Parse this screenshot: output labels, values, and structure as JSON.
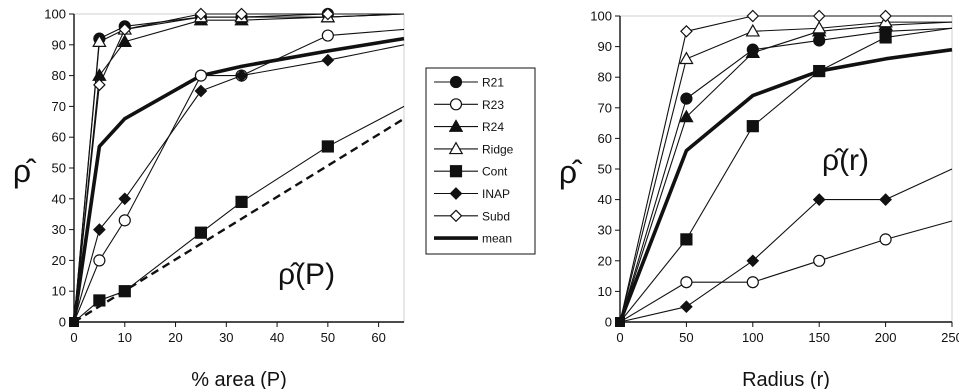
{
  "chart_data": [
    {
      "type": "line",
      "xlabel": "% area (P)",
      "ylabel": "ρ̂",
      "annotation": "ρ̂(P)",
      "xlim": [
        0,
        65
      ],
      "ylim": [
        0,
        100
      ],
      "xticks": [
        0,
        10,
        20,
        30,
        40,
        50,
        60
      ],
      "yticks": [
        0,
        10,
        20,
        30,
        40,
        50,
        60,
        70,
        80,
        90,
        100
      ],
      "grid": false,
      "series": [
        {
          "name": "R21",
          "marker": "circle-filled",
          "x": [
            0,
            5,
            10,
            25,
            33,
            50,
            65
          ],
          "y": [
            0,
            92,
            96,
            99,
            99,
            100,
            100
          ]
        },
        {
          "name": "R23",
          "marker": "circle-open",
          "x": [
            0,
            5,
            10,
            25,
            33,
            50,
            65
          ],
          "y": [
            0,
            20,
            33,
            80,
            80,
            93,
            95
          ]
        },
        {
          "name": "R24",
          "marker": "triangle-filled",
          "x": [
            0,
            5,
            10,
            25,
            33,
            50,
            65
          ],
          "y": [
            0,
            80,
            91,
            98,
            98,
            99,
            100
          ]
        },
        {
          "name": "Ridge",
          "marker": "triangle-open",
          "x": [
            0,
            5,
            10,
            25,
            33,
            50,
            65
          ],
          "y": [
            0,
            91,
            95,
            99,
            99,
            99,
            100
          ]
        },
        {
          "name": "Cont",
          "marker": "square-filled",
          "x": [
            0,
            5,
            10,
            25,
            33,
            50,
            65
          ],
          "y": [
            0,
            7,
            10,
            29,
            39,
            57,
            70
          ]
        },
        {
          "name": "INAP",
          "marker": "diamond-filled",
          "x": [
            0,
            5,
            10,
            25,
            33,
            50,
            65
          ],
          "y": [
            0,
            30,
            40,
            75,
            80,
            85,
            90
          ]
        },
        {
          "name": "Subd",
          "marker": "diamond-open",
          "x": [
            0,
            5,
            10,
            25,
            33,
            50,
            65
          ],
          "y": [
            0,
            77,
            95,
            100,
            100,
            100,
            100
          ]
        },
        {
          "name": "mean",
          "marker": "none",
          "bold": true,
          "x": [
            0,
            5,
            10,
            25,
            33,
            50,
            65
          ],
          "y": [
            0,
            57,
            66,
            80,
            83,
            88,
            92
          ]
        }
      ],
      "reference_line": {
        "style": "dashed",
        "x": [
          0,
          65
        ],
        "y": [
          0,
          66
        ]
      }
    },
    {
      "type": "line",
      "xlabel": "Radius (r)",
      "ylabel": "ρ̂",
      "annotation": "ρ̂(r)",
      "xlim": [
        0,
        250
      ],
      "ylim": [
        0,
        100
      ],
      "xticks": [
        0,
        50,
        100,
        150,
        200,
        250
      ],
      "yticks": [
        0,
        10,
        20,
        30,
        40,
        50,
        60,
        70,
        80,
        90,
        100
      ],
      "grid": false,
      "series": [
        {
          "name": "R21",
          "marker": "circle-filled",
          "x": [
            0,
            50,
            100,
            150,
            200,
            250
          ],
          "y": [
            0,
            73,
            89,
            92,
            95,
            96
          ]
        },
        {
          "name": "R23",
          "marker": "circle-open",
          "x": [
            0,
            50,
            100,
            150,
            200,
            250
          ],
          "y": [
            0,
            13,
            13,
            20,
            27,
            33
          ]
        },
        {
          "name": "R24",
          "marker": "triangle-filled",
          "x": [
            0,
            50,
            100,
            150,
            200,
            250
          ],
          "y": [
            0,
            67,
            88,
            95,
            97,
            98
          ]
        },
        {
          "name": "Ridge",
          "marker": "triangle-open",
          "x": [
            0,
            50,
            100,
            150,
            200,
            250
          ],
          "y": [
            0,
            86,
            95,
            96,
            98,
            98
          ]
        },
        {
          "name": "Cont",
          "marker": "square-filled",
          "x": [
            0,
            50,
            100,
            150,
            200,
            250
          ],
          "y": [
            0,
            27,
            64,
            82,
            93,
            96
          ]
        },
        {
          "name": "INAP",
          "marker": "diamond-filled",
          "x": [
            0,
            50,
            100,
            150,
            200,
            250
          ],
          "y": [
            0,
            5,
            20,
            40,
            40,
            50
          ]
        },
        {
          "name": "Subd",
          "marker": "diamond-open",
          "x": [
            0,
            50,
            100,
            150,
            200,
            250
          ],
          "y": [
            0,
            95,
            100,
            100,
            100,
            100
          ]
        },
        {
          "name": "mean",
          "marker": "none",
          "bold": true,
          "x": [
            0,
            50,
            100,
            150,
            200,
            250
          ],
          "y": [
            0,
            56,
            74,
            82,
            86,
            89
          ]
        }
      ]
    }
  ],
  "legend": {
    "placement": "center",
    "entries": [
      "R21",
      "R23",
      "R24",
      "Ridge",
      "Cont",
      "INAP",
      "Subd",
      "mean"
    ]
  }
}
